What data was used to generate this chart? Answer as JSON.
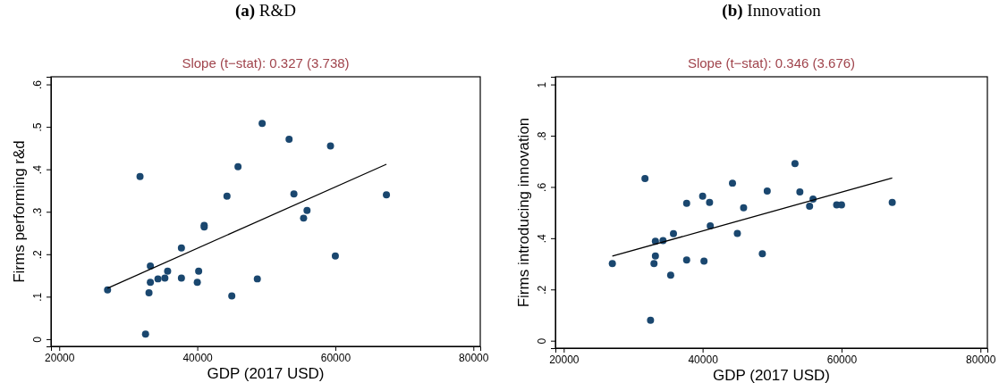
{
  "chart_data": [
    {
      "type": "scatter",
      "title": "(a) R&D",
      "subtitle": "Slope (t−stat): 0.327 (3.738)",
      "xlabel": "GDP (2017 USD)",
      "ylabel": "Firms performing r&d",
      "xlim": [
        18800,
        81000
      ],
      "ylim": [
        -0.017,
        0.618
      ],
      "xticks": [
        20000,
        40000,
        60000,
        80000
      ],
      "yticks": [
        {
          "value": 0,
          "label": "0"
        },
        {
          "value": 0.1,
          "label": ".1"
        },
        {
          "value": 0.2,
          "label": ".2"
        },
        {
          "value": 0.3,
          "label": ".3"
        },
        {
          "value": 0.4,
          "label": ".4"
        },
        {
          "value": 0.5,
          "label": ".5"
        },
        {
          "value": 0.6,
          "label": ".6"
        }
      ],
      "grid": false,
      "series": [
        {
          "marker": "circle",
          "color": "#1a476f",
          "x": [
            27000,
            31700,
            32500,
            33000,
            33200,
            33200,
            34300,
            35300,
            35700,
            37700,
            37700,
            40000,
            40200,
            41000,
            41000,
            44300,
            45000,
            45900,
            48700,
            49400,
            53300,
            54000,
            55400,
            55900,
            59300,
            60000,
            67400
          ],
          "values": [
            0.116,
            0.383,
            0.012,
            0.109,
            0.172,
            0.134,
            0.142,
            0.144,
            0.16,
            0.215,
            0.144,
            0.134,
            0.16,
            0.268,
            0.264,
            0.337,
            0.102,
            0.406,
            0.142,
            0.508,
            0.471,
            0.342,
            0.285,
            0.303,
            0.455,
            0.196,
            0.34
          ]
        },
        {
          "type": "line",
          "color": "#000000",
          "x": [
            27000,
            67400
          ],
          "values": [
            0.12,
            0.412
          ]
        }
      ]
    },
    {
      "type": "scatter",
      "title": "(b) Innovation",
      "subtitle": "Slope (t−stat): 0.346 (3.676)",
      "xlabel": "GDP (2017 USD)",
      "ylabel": "Firms introducing innovation",
      "xlim": [
        18800,
        81000
      ],
      "ylim": [
        -0.029,
        1.03
      ],
      "xticks": [
        20000,
        40000,
        60000,
        80000
      ],
      "yticks": [
        {
          "value": 0,
          "label": "0"
        },
        {
          "value": 0.2,
          "label": ".2"
        },
        {
          "value": 0.4,
          "label": ".4"
        },
        {
          "value": 0.6,
          "label": ".6"
        },
        {
          "value": 0.8,
          "label": ".8"
        },
        {
          "value": 1,
          "label": "1"
        }
      ],
      "grid": false,
      "series": [
        {
          "marker": "circle",
          "color": "#1a476f",
          "x": [
            27000,
            31700,
            32500,
            33000,
            33200,
            33200,
            34300,
            35400,
            35800,
            37700,
            37700,
            40000,
            40200,
            41000,
            41100,
            44300,
            45000,
            45900,
            48600,
            49300,
            53300,
            54000,
            55400,
            55900,
            59300,
            60000,
            67300
          ],
          "values": [
            0.301,
            0.633,
            0.08,
            0.301,
            0.388,
            0.331,
            0.391,
            0.256,
            0.418,
            0.536,
            0.315,
            0.564,
            0.311,
            0.54,
            0.448,
            0.615,
            0.419,
            0.519,
            0.339,
            0.584,
            0.691,
            0.581,
            0.525,
            0.553,
            0.53,
            0.53,
            0.54
          ]
        },
        {
          "type": "line",
          "color": "#000000",
          "x": [
            27000,
            67300
          ],
          "values": [
            0.33,
            0.635
          ]
        }
      ]
    }
  ]
}
